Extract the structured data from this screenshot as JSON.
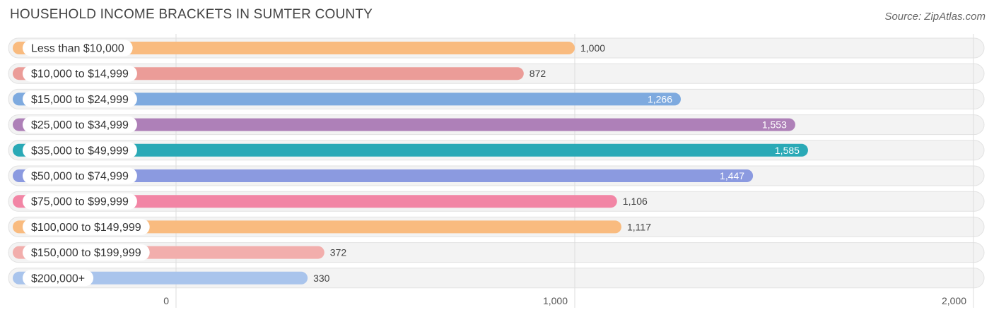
{
  "title": "HOUSEHOLD INCOME BRACKETS IN SUMTER COUNTY",
  "source": "Source: ZipAtlas.com",
  "chart_data": {
    "type": "bar",
    "orientation": "horizontal",
    "title": "HOUSEHOLD INCOME BRACKETS IN SUMTER COUNTY",
    "categories": [
      "Less than $10,000",
      "$10,000 to $14,999",
      "$15,000 to $24,999",
      "$25,000 to $34,999",
      "$35,000 to $49,999",
      "$50,000 to $74,999",
      "$75,000 to $99,999",
      "$100,000 to $149,999",
      "$150,000 to $199,999",
      "$200,000+"
    ],
    "values": [
      1000,
      872,
      1266,
      1553,
      1585,
      1447,
      1106,
      1117,
      372,
      330
    ],
    "value_labels": [
      "1,000",
      "872",
      "1,266",
      "1,553",
      "1,585",
      "1,447",
      "1,106",
      "1,117",
      "372",
      "330"
    ],
    "colors": [
      "#f9bb7f",
      "#eb9c98",
      "#7eaadf",
      "#ae80b8",
      "#2aa9b6",
      "#8b9ae0",
      "#f285a5",
      "#f9bb7f",
      "#f2aeac",
      "#a9c4ec"
    ],
    "xlim": [
      0,
      2000
    ],
    "xticks": [
      0,
      1000,
      2000
    ],
    "xtick_labels": [
      "0",
      "1,000",
      "2,000"
    ],
    "grid": true,
    "legend": "none"
  }
}
